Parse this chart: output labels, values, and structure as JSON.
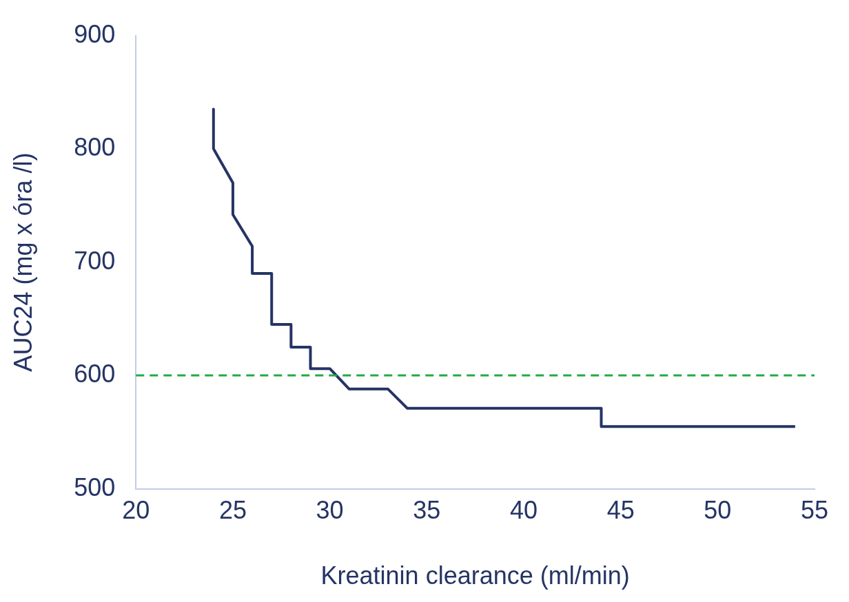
{
  "chart_data": {
    "type": "line",
    "xlabel": "Kreatinin clearance (ml/min)",
    "ylabel": "AUC24 (mg x óra /l)",
    "x": [
      24,
      24,
      25,
      25,
      26,
      26,
      27,
      27,
      28,
      28,
      29,
      29,
      30,
      31,
      33,
      34,
      44,
      44,
      54
    ],
    "series": [
      {
        "color": "#253465",
        "values": [
          835,
          800,
          770,
          742,
          714,
          690,
          690,
          645,
          645,
          625,
          625,
          606,
          606,
          588,
          588,
          571,
          571,
          555,
          555
        ]
      }
    ],
    "xlim": [
      20,
      55
    ],
    "xticks": [
      20,
      25,
      30,
      35,
      40,
      45,
      50,
      55
    ],
    "ylim": [
      500,
      900
    ],
    "yticks": [
      500,
      600,
      700,
      800,
      900
    ],
    "ref_lines": [
      {
        "axis": "y",
        "value": 600,
        "color": "#22aa44",
        "line_style": "dashed"
      }
    ],
    "grid": false,
    "legend": false,
    "marker": "none",
    "line_style": "solid"
  }
}
